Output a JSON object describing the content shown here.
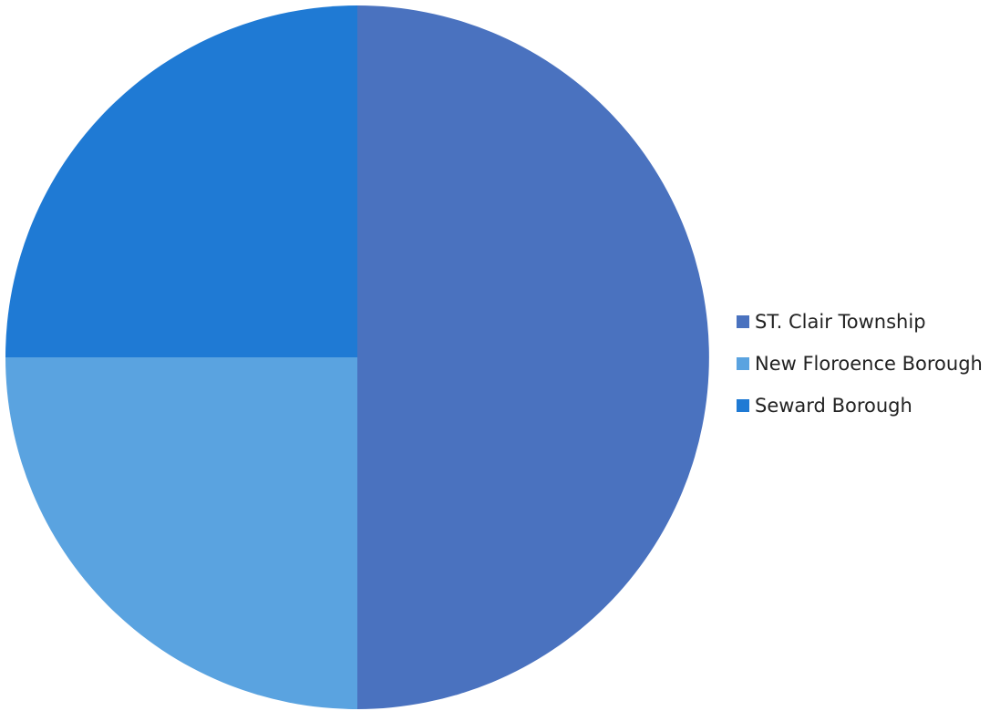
{
  "chart_data": {
    "type": "pie",
    "categories": [
      "ST. Clair Township",
      "New Floroence Borough",
      "Seward Borough"
    ],
    "values": [
      50,
      25,
      25
    ],
    "colors": [
      "#4a72bf",
      "#5aa3e0",
      "#1f7ad4"
    ],
    "start_angle_deg": 0,
    "direction": "clockwise",
    "legend_position": "right"
  }
}
